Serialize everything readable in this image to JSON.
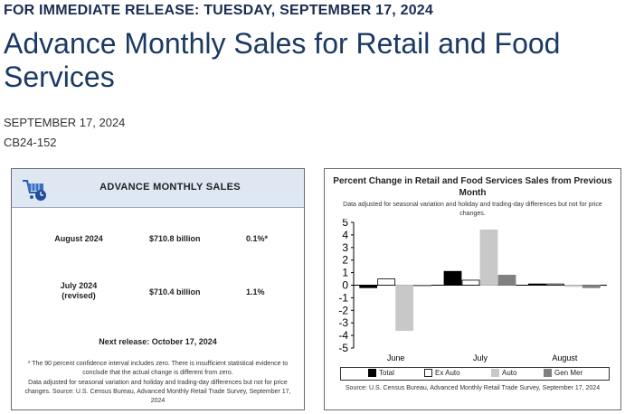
{
  "header": {
    "release_line": "FOR IMMEDIATE RELEASE: TUESDAY, SEPTEMBER 17, 2024",
    "title": "Advance Monthly Sales for Retail and Food Services",
    "date": "SEPTEMBER 17, 2024",
    "release_code": "CB24-152"
  },
  "summary_box": {
    "icon": "shopping-cart-icon",
    "title": "ADVANCE MONTHLY SALES",
    "rows": [
      {
        "period": "August 2024",
        "sales": "$710.8 billion",
        "change": "0.1%*"
      },
      {
        "period": "July 2024",
        "period_note": "(revised)",
        "sales": "$710.4 billion",
        "change": "1.1%"
      }
    ],
    "next_release": "Next release: October 17, 2024",
    "footnote_1": "* The 90 percent confidence interval includes zero. There is insufficient statistical evidence to conclude that the actual change is different from zero.",
    "footnote_2": "Data adjusted for seasonal variation and holiday and trading-day differences but not for price changes. Source: U.S. Census Bureau, Advanced Monthly Retail Trade Survey, September 17, 2024"
  },
  "chart_data": {
    "type": "bar",
    "title": "Percent Change in Retail and Food Services Sales from Previous Month",
    "subtitle": "Data adjusted for seasonal variation and holiday and trading-day differences but not for price changes.",
    "source": "Source: U.S. Census Bureau, Advanced Monthly Retail Trade Survey, September 17, 2024",
    "categories": [
      "June",
      "July",
      "August"
    ],
    "ylim": [
      -5,
      5
    ],
    "yticks": [
      "5",
      "4",
      "3",
      "2",
      "1",
      "0",
      "-1",
      "-2",
      "-3",
      "-4",
      "-5"
    ],
    "series": [
      {
        "name": "Total",
        "color": "#000000",
        "values": [
          -0.2,
          1.1,
          0.1
        ]
      },
      {
        "name": "Ex Auto",
        "color": "#ffffff",
        "values": [
          0.5,
          0.4,
          0.1
        ]
      },
      {
        "name": "Auto",
        "color": "#c8c8c8",
        "values": [
          -3.6,
          4.4,
          -0.1
        ]
      },
      {
        "name": "Gen Mer",
        "color": "#808080",
        "values": [
          0.0,
          0.8,
          -0.2
        ]
      }
    ],
    "legend_position": "bottom"
  }
}
